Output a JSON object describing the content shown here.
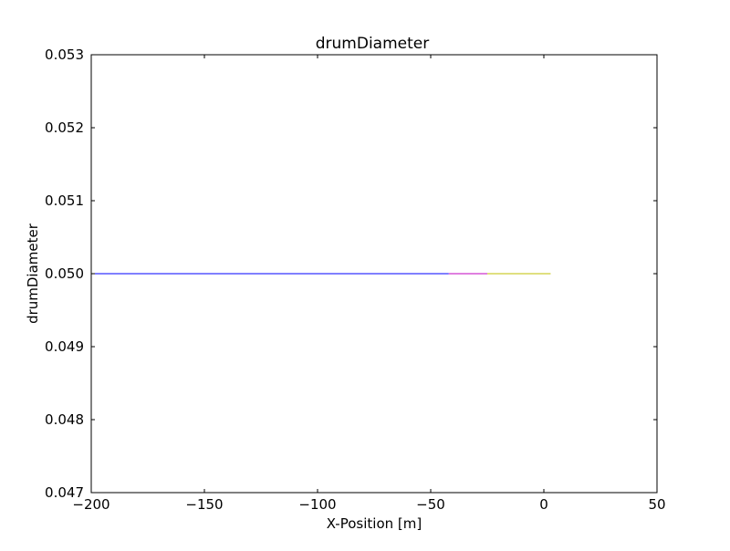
{
  "chart_data": {
    "type": "line",
    "title": "drumDiameter",
    "xlabel": "X-Position [m]",
    "ylabel": "drumDiameter",
    "xlim": [
      -200,
      50
    ],
    "ylim": [
      0.047,
      0.053
    ],
    "x_ticks": [
      -200,
      -150,
      -100,
      -50,
      0,
      50
    ],
    "x_tick_labels": [
      "−200",
      "−150",
      "−100",
      "−50",
      "0",
      "50"
    ],
    "y_ticks": [
      0.047,
      0.048,
      0.049,
      0.05,
      0.051,
      0.052,
      0.053
    ],
    "y_tick_labels": [
      "0.047",
      "0.048",
      "0.049",
      "0.050",
      "0.051",
      "0.052",
      "0.053"
    ],
    "grid": false,
    "legend": "none",
    "series": [
      {
        "color": "#0000ff",
        "x": [
          -200,
          -42
        ],
        "y": [
          0.05,
          0.05
        ]
      },
      {
        "color": "#bf00bf",
        "x": [
          -42,
          -25
        ],
        "y": [
          0.05,
          0.05
        ]
      },
      {
        "color": "#bfbf00",
        "x": [
          -25,
          3
        ],
        "y": [
          0.05,
          0.05
        ]
      }
    ]
  }
}
